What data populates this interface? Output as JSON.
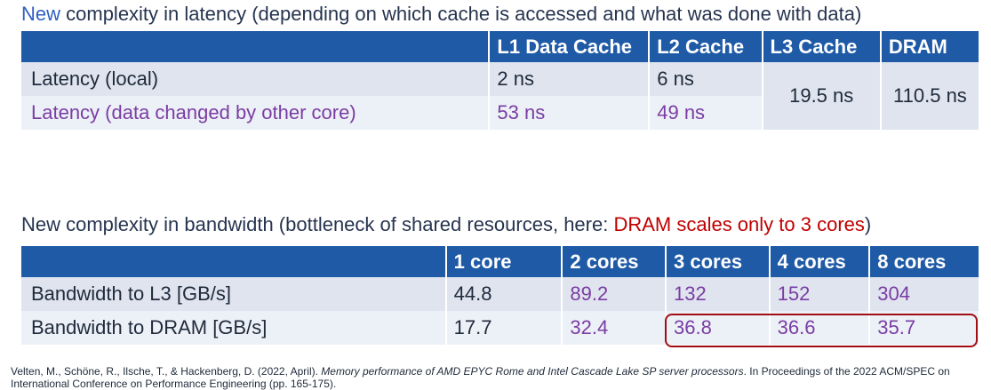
{
  "heading1": {
    "new": "New",
    "rest": " complexity in latency (depending on which cache is accessed and what was done with data)"
  },
  "latency_table": {
    "headers": [
      "",
      "L1 Data Cache",
      "L2 Cache",
      "L3 Cache",
      "DRAM"
    ],
    "rows": [
      {
        "label": "Latency (local)",
        "l1": "2 ns",
        "l2": "6 ns"
      },
      {
        "label": "Latency (data changed by other core)",
        "l1": "53 ns",
        "l2": "49 ns"
      }
    ],
    "l3": "19.5 ns",
    "dram": "110.5 ns"
  },
  "heading2": {
    "text": "New complexity in bandwidth (bottleneck of shared resources, here: ",
    "highlight": "DRAM scales only to 3 cores",
    "end": ")"
  },
  "bandwidth_table": {
    "headers": [
      "",
      "1 core",
      "2 cores",
      "3 cores",
      "4 cores",
      "8 cores"
    ],
    "rows": [
      {
        "label": "Bandwidth to L3 [GB/s]",
        "values": [
          "44.8",
          "89.2",
          "132",
          "152",
          "304"
        ]
      },
      {
        "label": "Bandwidth to DRAM [GB/s]",
        "values": [
          "17.7",
          "32.4",
          "36.8",
          "36.6",
          "35.7"
        ]
      }
    ]
  },
  "footer": {
    "prefix": "Velten, M., Schöne, R., Ilsche, T., & Hackenberg, D. (2022, April). ",
    "title": "Memory performance of AMD EPYC Rome and Intel Cascade Lake SP server processors",
    "suffix": ". In Proceedings of the 2022 ACM/SPEC on International Conference on Performance Engineering (pp. 165-175)."
  },
  "colors": {
    "header_bg": "#1f5aa6",
    "row_bg": "#dfe4ef",
    "alt_row_bg": "#ecf0f7",
    "purple": "#7a3da3",
    "red": "#c00000",
    "box_border": "#a00e12"
  }
}
